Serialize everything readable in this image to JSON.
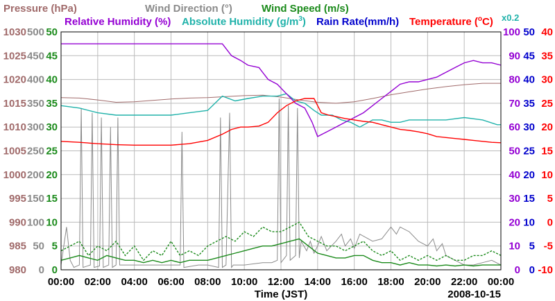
{
  "chart_data": {
    "type": "line",
    "date": "2008-10-15",
    "xlabel": "Time (JST)",
    "x_ticks": [
      "00:00",
      "02:00",
      "04:00",
      "06:00",
      "08:00",
      "10:00",
      "12:00",
      "14:00",
      "16:00",
      "18:00",
      "20:00",
      "22:00",
      "00:00"
    ],
    "x_range_hours": [
      0,
      24
    ],
    "multiplier_note": "x0.2",
    "colors": {
      "pressure": "#a06a6a",
      "wind_direction": "#8a8a8a",
      "wind_speed": "#1a8a1a",
      "relative_humidity": "#9400d3",
      "absolute_humidity": "#20b2aa",
      "rain_rate": "#0000cc",
      "temperature": "#ff0000",
      "grid": "#bbbbbb"
    },
    "legend_row1": {
      "pressure": "Pressure (hPa)",
      "wind_direction": "Wind Direction (°)",
      "wind_speed": "Wind Speed (m/s)"
    },
    "legend_row2": {
      "relative_humidity": "Relative Humidity (%)",
      "absolute_humidity_prefix": "Absolute Humidity (g/m",
      "absolute_humidity_sup": "3",
      "absolute_humidity_suffix": ")",
      "rain_rate": "Rain Rate(mm/h)",
      "temperature_prefix": "Temperature (",
      "temperature_sup": "o",
      "temperature_suffix": "C)"
    },
    "axes": {
      "pressure": {
        "min": 980,
        "max": 1030,
        "ticks": [
          980,
          985,
          990,
          995,
          1000,
          1005,
          1010,
          1015,
          1020,
          1025,
          1030
        ]
      },
      "wind_direction": {
        "min": 0,
        "max": 500,
        "ticks": [
          0,
          50,
          100,
          150,
          200,
          250,
          300,
          350,
          400,
          450,
          500
        ]
      },
      "wind_speed": {
        "min": 0,
        "max": 50,
        "ticks": [
          0,
          5,
          10,
          15,
          20,
          25,
          30,
          35,
          40,
          45,
          50
        ]
      },
      "relative_humidity": {
        "min": 0,
        "max": 100,
        "ticks": [
          0,
          10,
          20,
          30,
          40,
          50,
          60,
          70,
          80,
          90,
          100
        ]
      },
      "rain_rate": {
        "min": 0,
        "max": 50,
        "ticks": [
          0,
          5,
          10,
          15,
          20,
          25,
          30,
          35,
          40,
          45,
          50
        ]
      },
      "temperature": {
        "min": -10,
        "max": 40,
        "ticks": [
          -10,
          -5,
          0,
          5,
          10,
          15,
          20,
          25,
          30,
          35,
          40
        ]
      }
    },
    "series": [
      {
        "name": "Pressure",
        "axis": "pressure",
        "x": [
          0,
          1,
          2,
          3,
          4,
          5,
          6,
          7,
          8,
          9,
          10,
          11,
          12,
          13,
          14,
          15,
          16,
          17,
          18,
          19,
          20,
          21,
          22,
          23,
          24
        ],
        "y": [
          1016.2,
          1016.1,
          1015.7,
          1015.2,
          1015.3,
          1015.6,
          1015.9,
          1016.1,
          1016.2,
          1016.4,
          1016.6,
          1016.7,
          1016.3,
          1015.7,
          1015.2,
          1015.0,
          1015.3,
          1016.0,
          1016.8,
          1017.4,
          1018.0,
          1018.5,
          1018.9,
          1019.2,
          1019.2
        ]
      },
      {
        "name": "Relative Humidity",
        "axis": "relative_humidity",
        "x": [
          0,
          1,
          2,
          3,
          4,
          5,
          6,
          7,
          8,
          8.8,
          9.3,
          9.8,
          10.2,
          10.8,
          11.3,
          11.8,
          12.3,
          12.8,
          13.3,
          13.7,
          14.0,
          14.5,
          15.0,
          15.5,
          16.0,
          16.5,
          17.0,
          17.5,
          18.0,
          18.5,
          19.0,
          19.5,
          20.0,
          20.5,
          21.0,
          21.5,
          22.0,
          22.5,
          23.0,
          23.5,
          24
        ],
        "y": [
          95,
          95,
          95,
          95,
          95,
          95,
          95,
          95,
          95,
          95,
          90,
          88,
          86,
          85,
          80,
          78,
          74,
          70,
          68,
          62,
          56,
          58,
          60,
          62,
          64,
          66,
          69,
          72,
          75,
          78,
          79,
          79,
          80,
          81,
          83,
          85,
          87,
          88,
          87,
          87,
          86
        ]
      },
      {
        "name": "Absolute Humidity (x0.2)",
        "axis": "relative_humidity",
        "x": [
          0,
          1,
          2,
          3,
          4,
          5,
          6,
          7,
          8,
          8.8,
          9.5,
          10.2,
          11.0,
          11.8,
          12.3,
          12.8,
          13.3,
          13.8,
          14.2,
          14.8,
          15.3,
          15.8,
          16.3,
          17.0,
          17.5,
          18.0,
          18.5,
          19.0,
          20.0,
          21.0,
          22.0,
          23.0,
          23.8,
          24
        ],
        "y": [
          69,
          68,
          66,
          65,
          65,
          65,
          65,
          66,
          67,
          73,
          71,
          72,
          73,
          73,
          74,
          71,
          70,
          67,
          65,
          65,
          63,
          62,
          60,
          63,
          63,
          62,
          62,
          63,
          63,
          63,
          64,
          63,
          61,
          61
        ]
      },
      {
        "name": "Temperature",
        "axis": "temperature",
        "x": [
          0,
          1,
          2,
          3,
          4,
          5,
          6,
          7,
          8,
          8.8,
          9.3,
          9.8,
          10.2,
          10.8,
          11.3,
          11.8,
          12.3,
          12.8,
          13.3,
          13.8,
          14.2,
          14.6,
          15.0,
          15.5,
          16.0,
          16.5,
          17.0,
          17.5,
          18.0,
          18.5,
          19.0,
          19.5,
          20.0,
          20.5,
          21.0,
          21.5,
          22.0,
          22.5,
          23.0,
          23.5,
          24
        ],
        "y": [
          17,
          16.8,
          16.5,
          16.3,
          16.2,
          16.2,
          16.2,
          16.5,
          17.2,
          18.5,
          19.5,
          20.0,
          20.0,
          20.2,
          21.0,
          23.0,
          24.5,
          25.5,
          26.0,
          26.0,
          23.0,
          22.5,
          22.2,
          21.8,
          21.5,
          21.2,
          21.0,
          20.5,
          20.0,
          19.5,
          19.3,
          19.0,
          18.6,
          18.0,
          17.8,
          17.6,
          17.4,
          17.2,
          17.0,
          16.8,
          16.7
        ]
      },
      {
        "name": "Wind Direction",
        "axis": "wind_direction",
        "x": [
          0,
          0.3,
          0.5,
          0.7,
          1.0,
          1.1,
          1.2,
          1.6,
          1.7,
          1.8,
          2.1,
          2.2,
          2.3,
          2.6,
          2.7,
          2.8,
          3.0,
          3.1,
          3.2,
          4.0,
          5.0,
          6.0,
          6.5,
          6.6,
          6.7,
          7.5,
          8.0,
          8.6,
          8.7,
          8.8,
          9.0,
          9.2,
          9.3,
          9.4,
          9.6,
          10.0,
          11.0,
          11.5,
          11.8,
          11.9,
          12.0,
          12.3,
          12.4,
          12.5,
          12.8,
          12.9,
          13.0,
          13.1,
          13.4,
          13.6,
          13.8,
          14.0,
          14.2,
          14.5,
          15.0,
          15.3,
          15.5,
          15.8,
          16.0,
          16.3,
          17.0,
          17.5,
          18.0,
          18.3,
          18.5,
          19.0,
          19.5,
          20.0,
          20.3,
          20.5,
          20.8,
          21.0,
          21.5,
          22.0,
          22.5,
          23.0,
          23.5,
          24
        ],
        "y": [
          10,
          90,
          20,
          5,
          10,
          340,
          5,
          10,
          330,
          5,
          8,
          320,
          5,
          10,
          300,
          5,
          10,
          320,
          10,
          10,
          10,
          10,
          10,
          290,
          5,
          10,
          10,
          5,
          320,
          5,
          10,
          330,
          5,
          10,
          10,
          10,
          15,
          15,
          20,
          360,
          15,
          30,
          345,
          20,
          30,
          340,
          25,
          60,
          40,
          60,
          35,
          50,
          70,
          40,
          60,
          75,
          50,
          65,
          45,
          75,
          60,
          65,
          90,
          75,
          90,
          80,
          60,
          50,
          65,
          40,
          55,
          30,
          20,
          10,
          10,
          15,
          20,
          10
        ]
      },
      {
        "name": "Wind Speed",
        "axis": "wind_speed",
        "x": [
          0,
          0.5,
          1,
          1.5,
          2,
          2.5,
          3,
          3.5,
          4,
          4.5,
          5,
          5.5,
          6,
          6.5,
          7,
          7.5,
          8,
          8.5,
          9,
          9.5,
          10,
          10.5,
          11,
          11.5,
          12,
          12.5,
          13,
          13.5,
          14,
          14.5,
          15,
          15.5,
          16,
          16.5,
          17,
          17.5,
          18,
          18.5,
          19,
          19.5,
          20,
          20.5,
          21,
          21.5,
          22,
          22.5,
          23,
          23.5,
          24
        ],
        "y": [
          2,
          2.5,
          3,
          2.5,
          2,
          3,
          2.5,
          2,
          2,
          1.5,
          2,
          1.5,
          2,
          1.5,
          2,
          2,
          2,
          2.5,
          3,
          3.5,
          4,
          4.5,
          5,
          5,
          5.5,
          6,
          6.5,
          5,
          3.5,
          3,
          2.5,
          2.5,
          3,
          3,
          2,
          1.5,
          1.5,
          1,
          1.5,
          1,
          1,
          0.8,
          1,
          0.8,
          1,
          0.8,
          1,
          1,
          1
        ]
      },
      {
        "name": "Wind Speed (gust)",
        "axis": "wind_speed",
        "x": [
          0,
          0.5,
          1,
          1.5,
          2,
          2.5,
          3,
          3.5,
          4,
          4.5,
          5,
          5.5,
          6,
          6.5,
          7,
          7.5,
          8,
          8.5,
          9,
          9.5,
          10,
          10.5,
          11,
          11.5,
          12,
          12.5,
          13,
          13.5,
          14,
          14.5,
          15,
          15.5,
          16,
          16.5,
          17,
          17.5,
          18,
          18.5,
          19,
          19.5,
          20,
          20.5,
          21,
          21.5,
          22,
          22.5,
          23,
          23.5,
          24
        ],
        "y": [
          4,
          5,
          6,
          3,
          5,
          4,
          6,
          3,
          5,
          2,
          4,
          3,
          6,
          3,
          4,
          3,
          5,
          6,
          7,
          6,
          8,
          7,
          9,
          8,
          8,
          9,
          10,
          7,
          6,
          5,
          5,
          4,
          5,
          6,
          4,
          3,
          4,
          2,
          3,
          2,
          3,
          2,
          3,
          2,
          2,
          3,
          3,
          4,
          3
        ]
      }
    ]
  }
}
